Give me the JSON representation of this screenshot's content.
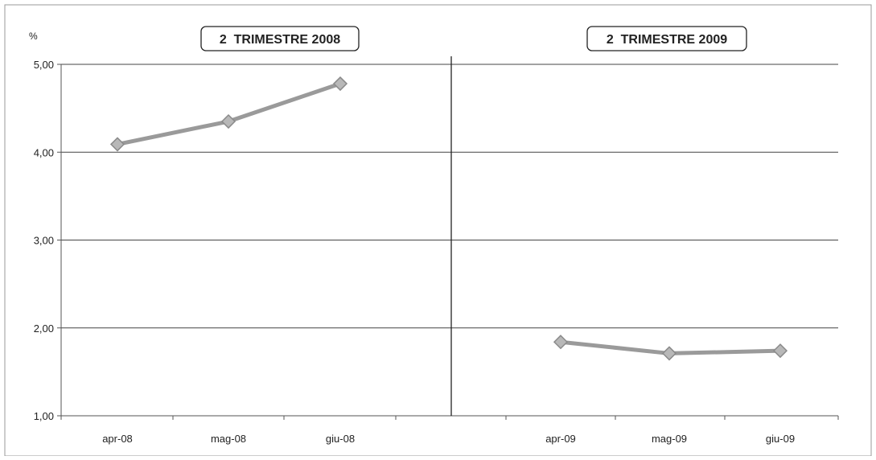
{
  "chart_data": {
    "type": "line",
    "unit_label": "%",
    "ylim": [
      1,
      5
    ],
    "yticks": [
      "1,00",
      "2,00",
      "3,00",
      "4,00",
      "5,00"
    ],
    "ytick_values": [
      1,
      2,
      3,
      4,
      5
    ],
    "grid": true,
    "line_color": "#9a9a9a",
    "panels": [
      {
        "title": "2  TRIMESTRE 2008",
        "categories": [
          "apr-08",
          "mag-08",
          "giu-08"
        ],
        "values": [
          4.09,
          4.35,
          4.78
        ]
      },
      {
        "title": "2  TRIMESTRE 2009",
        "categories": [
          "apr-09",
          "mag-09",
          "giu-09"
        ],
        "values": [
          1.84,
          1.71,
          1.74
        ]
      }
    ]
  }
}
